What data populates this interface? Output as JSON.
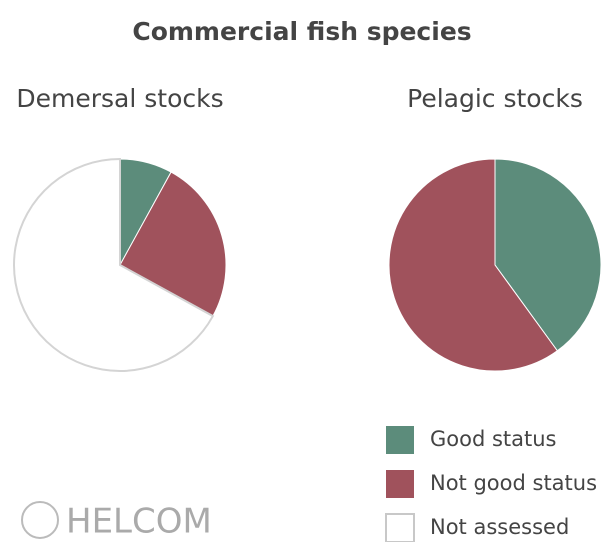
{
  "title": "Commercial fish species",
  "logo": "HELCOM",
  "chart_data": [
    {
      "type": "pie",
      "title": "Demersal stocks",
      "categories": [
        "Good status",
        "Not good status",
        "Not assessed"
      ],
      "values": [
        8,
        25,
        67
      ],
      "colors": [
        "#5c8c7b",
        "#a0525c",
        "#ffffff"
      ]
    },
    {
      "type": "pie",
      "title": "Pelagic stocks",
      "categories": [
        "Good status",
        "Not good status"
      ],
      "values": [
        40,
        60
      ],
      "colors": [
        "#5c8c7b",
        "#a0525c"
      ]
    }
  ]
}
